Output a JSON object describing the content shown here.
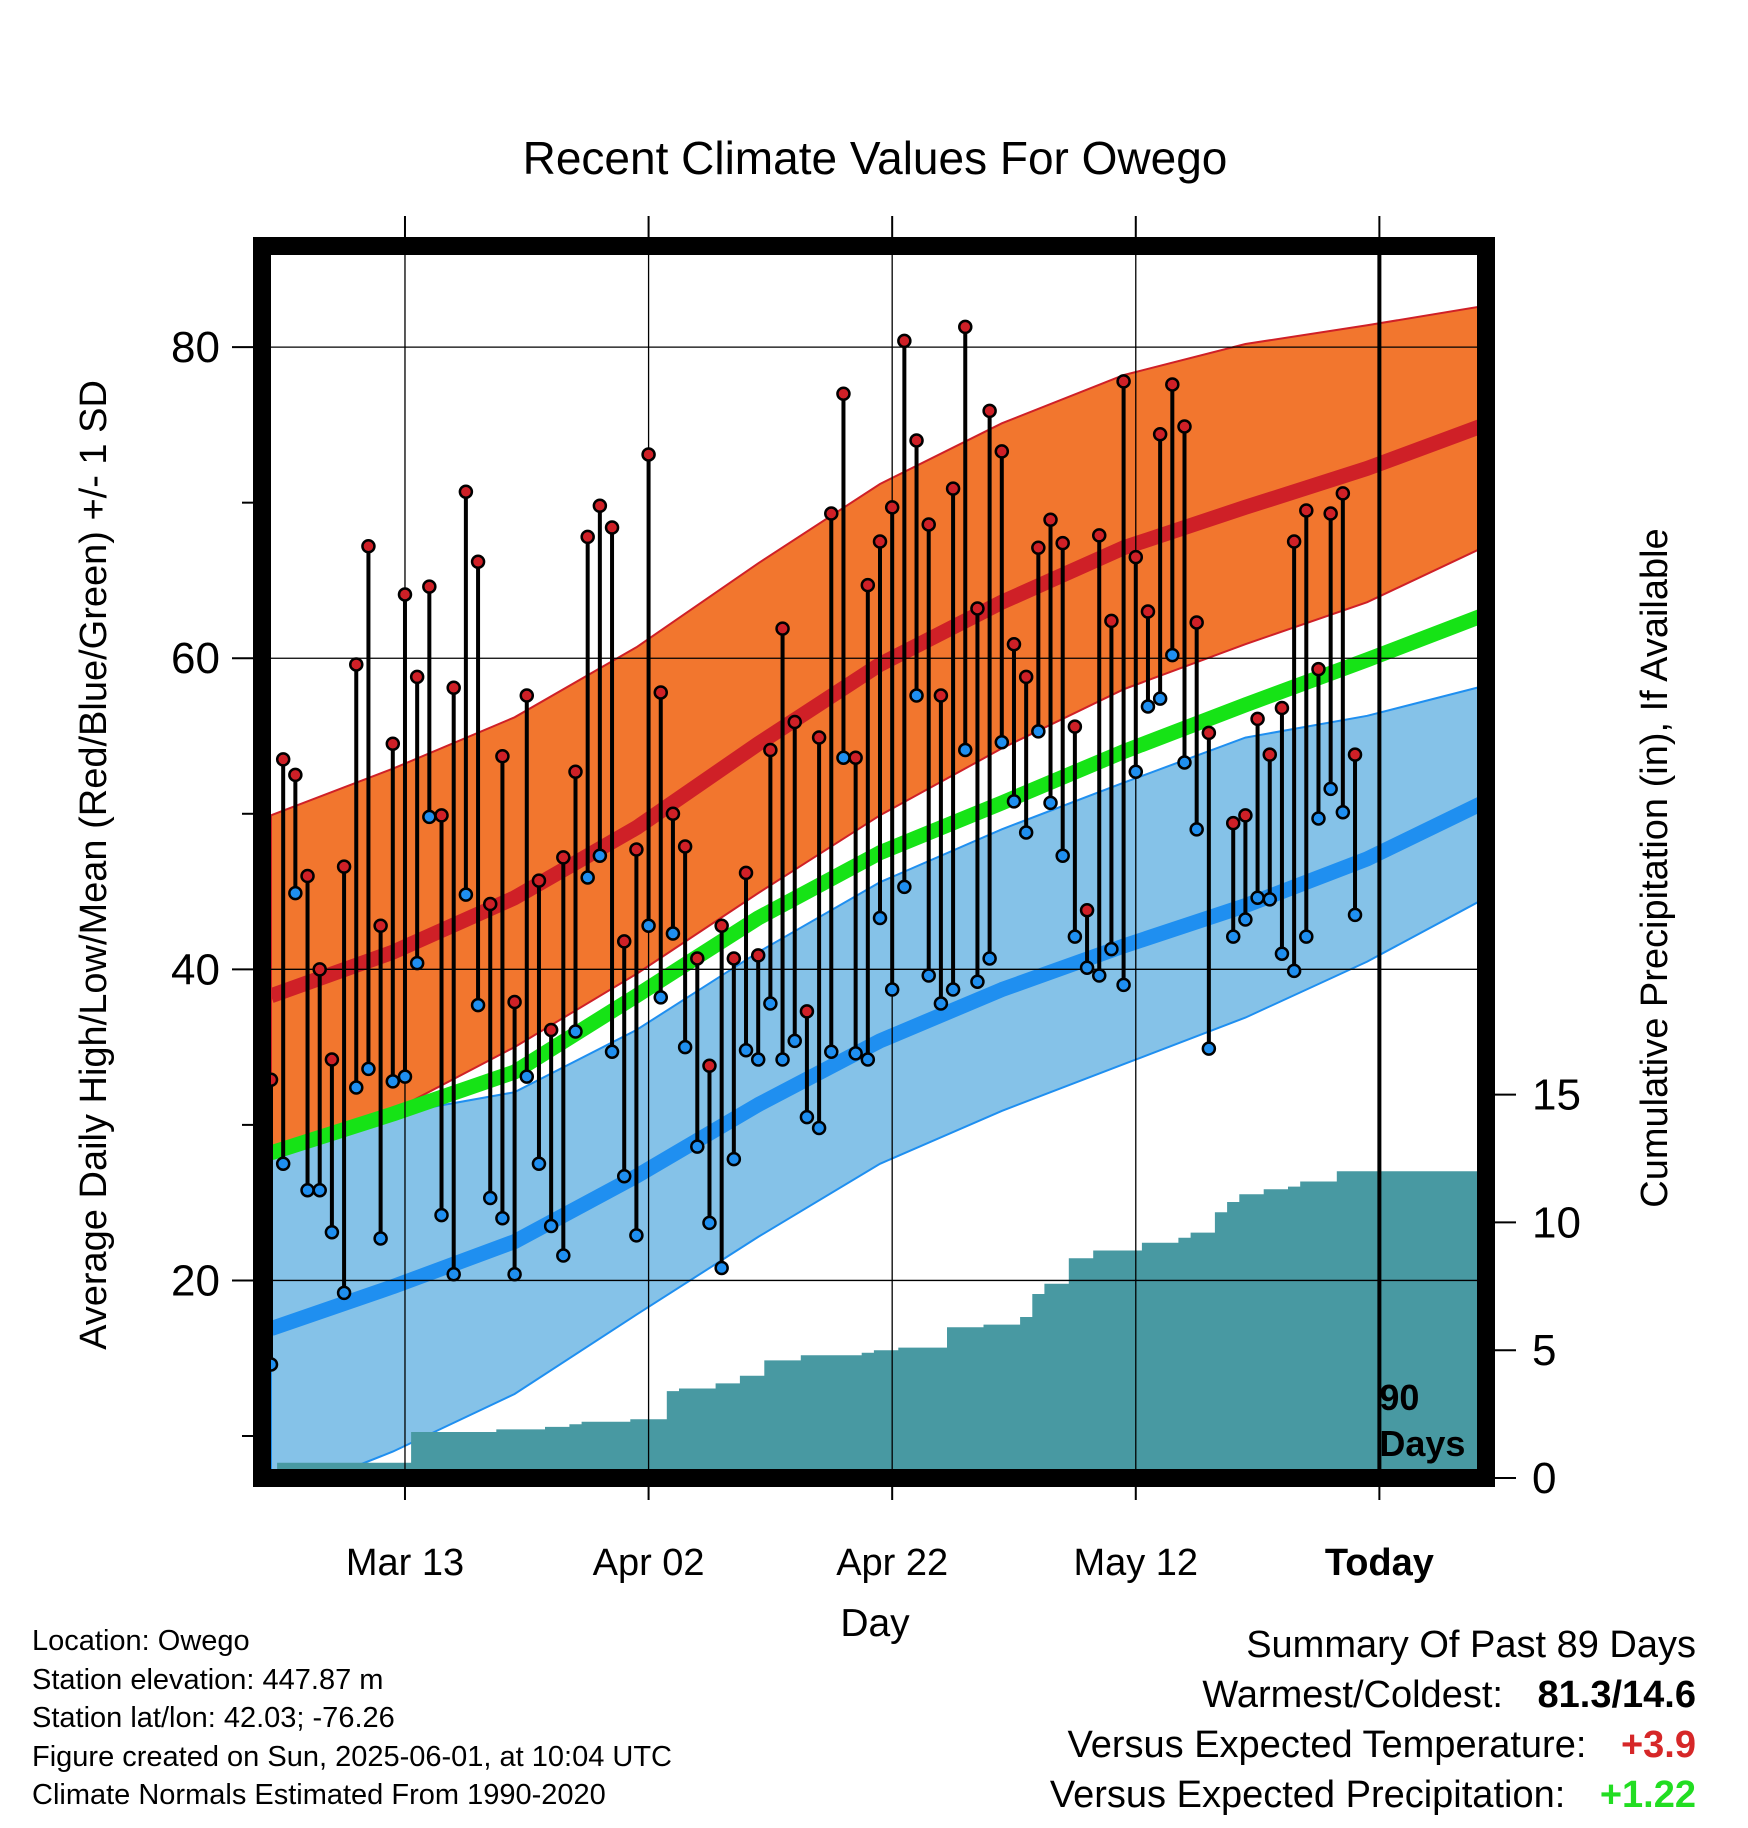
{
  "chart_data": {
    "type": "line",
    "title": "Recent Climate Values For Owego",
    "xlabel": "Day",
    "ylabel": "Average Daily High/Low/Mean (Red/Blue/Green) +/- 1 SD",
    "y2label": "Cumulative Precipitation (in), If Available",
    "x_start": "Mar 02",
    "x_tick_labels": [
      "Mar 13",
      "Apr 02",
      "Apr 22",
      "May 12",
      "Today"
    ],
    "y_ticks": [
      20,
      40,
      60,
      80
    ],
    "y2_ticks": [
      0,
      5,
      10,
      15
    ],
    "ylim": [
      7.3,
      86.5
    ],
    "y2lim": [
      0,
      48.2
    ],
    "today_marker_label": "90 Days",
    "colors": {
      "high": "#cf2027",
      "high_band": "#f2762e",
      "low": "#1f8ff0",
      "low_band": "#85c2e8",
      "mean": "#16e316",
      "precip": "#4899a2",
      "point_outline": "#000000"
    },
    "normals": {
      "day": [
        0,
        10,
        20,
        30,
        40,
        50,
        60,
        70,
        80,
        90,
        100
      ],
      "high_mean": [
        38.3,
        41.1,
        44.6,
        49.1,
        54.5,
        59.6,
        63.6,
        67.1,
        69.7,
        72.2,
        75.1
      ],
      "high_plus_sd": [
        49.9,
        52.9,
        56.2,
        60.7,
        66.1,
        71.2,
        75.1,
        78.2,
        80.2,
        81.4,
        82.7
      ],
      "high_minus_sd": [
        28.4,
        30.9,
        35.0,
        39.7,
        44.9,
        49.9,
        54.2,
        58.0,
        60.9,
        63.6,
        67.3
      ],
      "low_mean": [
        16.9,
        19.6,
        22.5,
        26.7,
        31.3,
        35.4,
        38.7,
        41.5,
        44.1,
        47.1,
        50.9
      ],
      "low_plus_sd": [
        28.1,
        30.7,
        32.1,
        36.1,
        41.1,
        45.6,
        49.0,
        52.0,
        54.9,
        56.3,
        58.3
      ],
      "low_minus_sd": [
        5.9,
        9.0,
        12.7,
        17.8,
        22.8,
        27.5,
        30.9,
        33.9,
        36.9,
        40.5,
        44.7
      ],
      "mean": [
        28.2,
        30.7,
        33.4,
        38.3,
        43.3,
        47.5,
        50.7,
        54.0,
        57.0,
        59.9,
        62.9
      ]
    },
    "series": [
      {
        "name": "High",
        "values": [
          32.9,
          53.5,
          52.5,
          46.0,
          40.0,
          34.2,
          46.6,
          59.6,
          67.2,
          42.8,
          54.5,
          64.1,
          58.8,
          64.6,
          49.9,
          58.1,
          70.7,
          66.2,
          44.2,
          53.7,
          37.9,
          57.6,
          45.7,
          36.1,
          47.2,
          52.7,
          67.8,
          69.8,
          68.4,
          41.8,
          47.7,
          73.1,
          57.8,
          50.0,
          47.9,
          40.7,
          33.8,
          42.8,
          40.7,
          46.2,
          40.9,
          54.1,
          61.9,
          55.9,
          37.3,
          54.9,
          69.3,
          77.0,
          53.6,
          64.7,
          67.5,
          69.7,
          80.4,
          74.0,
          68.6,
          57.6,
          70.9,
          81.3,
          63.2,
          75.9,
          73.3,
          60.9,
          58.8,
          67.1,
          68.9,
          67.4,
          55.6,
          43.8,
          67.9,
          62.4,
          77.8,
          66.5,
          63.0,
          74.4,
          77.6,
          74.9,
          62.3,
          55.2,
          null,
          49.4,
          49.9,
          56.1,
          53.8,
          56.8,
          67.5,
          69.5,
          59.3,
          69.3,
          70.6,
          53.8
        ]
      },
      {
        "name": "Low",
        "values": [
          14.6,
          27.5,
          44.9,
          25.8,
          25.8,
          23.1,
          19.2,
          32.4,
          33.6,
          22.7,
          32.8,
          33.1,
          40.4,
          49.8,
          24.2,
          20.4,
          44.8,
          37.7,
          25.3,
          24.0,
          20.4,
          33.1,
          27.5,
          23.5,
          21.6,
          36.0,
          45.9,
          47.3,
          34.7,
          26.7,
          22.9,
          42.8,
          38.2,
          42.3,
          35.0,
          28.6,
          23.7,
          20.8,
          27.8,
          34.8,
          34.2,
          37.8,
          34.2,
          35.4,
          30.5,
          29.8,
          34.7,
          53.6,
          34.6,
          34.2,
          43.3,
          38.7,
          45.3,
          57.6,
          39.6,
          37.8,
          38.7,
          54.1,
          39.2,
          40.7,
          54.6,
          50.8,
          48.8,
          55.3,
          50.7,
          47.3,
          42.1,
          40.1,
          39.6,
          41.3,
          39.0,
          52.7,
          56.9,
          57.4,
          60.2,
          53.3,
          49.0,
          34.9,
          null,
          42.1,
          43.2,
          44.6,
          44.5,
          41.0,
          39.9,
          42.1,
          49.7,
          51.6,
          50.1,
          43.5
        ]
      },
      {
        "name": "Precip",
        "values": [
          null,
          0.6,
          0.6,
          0.6,
          0.6,
          0.6,
          0.6,
          0.6,
          0.6,
          0.6,
          0.6,
          0.6,
          1.8,
          1.8,
          1.8,
          1.8,
          1.8,
          1.8,
          1.8,
          1.9,
          1.9,
          1.9,
          1.9,
          2.0,
          2.0,
          2.1,
          2.2,
          2.2,
          2.2,
          2.2,
          2.3,
          2.3,
          2.3,
          3.4,
          3.5,
          3.5,
          3.5,
          3.7,
          3.7,
          4.0,
          4.0,
          4.6,
          4.6,
          4.6,
          4.8,
          4.8,
          4.8,
          4.8,
          4.8,
          4.9,
          5.0,
          5.0,
          5.1,
          5.1,
          5.1,
          5.1,
          5.9,
          5.9,
          5.9,
          6.0,
          6.0,
          6.0,
          6.3,
          7.2,
          7.6,
          7.6,
          8.6,
          8.6,
          8.9,
          8.9,
          8.9,
          8.9,
          9.2,
          9.2,
          9.2,
          9.4,
          9.6,
          9.6,
          10.4,
          10.8,
          11.1,
          11.1,
          11.3,
          11.3,
          11.4,
          11.6,
          11.6,
          11.6,
          12.0,
          12.0,
          12.0,
          12.0,
          12.0,
          12.0,
          12.0,
          12.0,
          12.0,
          12.0,
          12.0,
          12.0,
          12.0
        ]
      }
    ]
  },
  "footer": {
    "location": "Location: Owego",
    "elevation": "Station elevation: 447.87 m",
    "latlon": "Station lat/lon: 42.03; -76.26",
    "created": "Figure created on Sun, 2025-06-01, at 10:04 UTC",
    "normals": "Climate Normals Estimated From 1990-2020"
  },
  "summary": {
    "heading": "Summary Of Past 89 Days",
    "warmest_coldest_label": "Warmest/Coldest:",
    "warmest_coldest_value": "81.3/14.6",
    "temp_label": "Versus Expected Temperature:",
    "temp_value": "+3.9",
    "temp_color": "#d62728",
    "precip_label": "Versus Expected Precipitation:",
    "precip_value": "+1.22",
    "precip_color": "#22dd22"
  }
}
